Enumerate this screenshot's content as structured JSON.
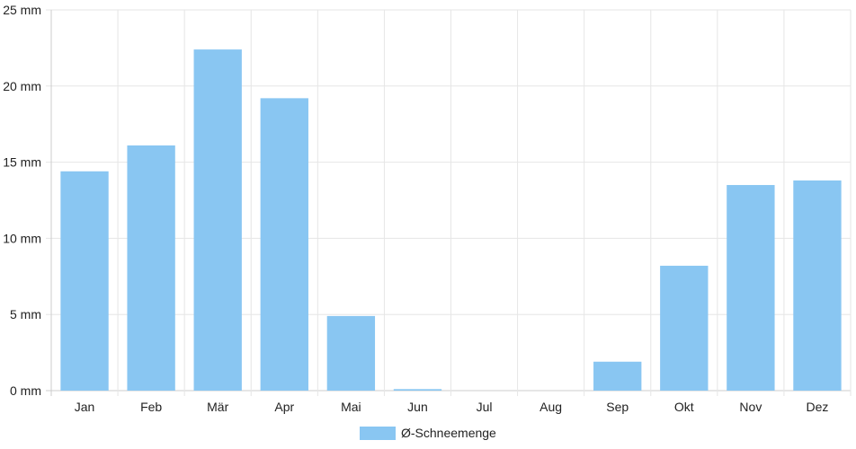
{
  "chart_data": {
    "type": "bar",
    "categories": [
      "Jan",
      "Feb",
      "Mär",
      "Apr",
      "Mai",
      "Jun",
      "Jul",
      "Aug",
      "Sep",
      "Okt",
      "Nov",
      "Dez"
    ],
    "series": [
      {
        "name": "Ø-Schneemenge",
        "values": [
          14.4,
          16.1,
          22.4,
          19.2,
          4.9,
          0.1,
          0,
          0,
          1.9,
          8.2,
          13.5,
          13.8
        ],
        "color": "#89c6f2"
      }
    ],
    "y_ticks": [
      "0 mm",
      "5 mm",
      "10 mm",
      "15 mm",
      "20 mm",
      "25 mm"
    ],
    "ylim": [
      0,
      25
    ],
    "title": "",
    "xlabel": "",
    "ylabel": "",
    "grid": true,
    "legend_position": "bottom-center",
    "colors": {
      "bar": "#89c6f2",
      "grid": "#e6e6e6",
      "axis": "#cccccc"
    }
  }
}
